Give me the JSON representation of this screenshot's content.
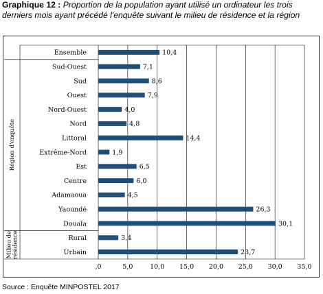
{
  "heading": {
    "lead": "Graphique 12 :",
    "text": "Proportion de la population ayant utilisé un ordinateur les trois derniers mois ayant précédé l'enquête suivant le milieu de résidence et la région"
  },
  "source": "Source : Enquête MINPOSTEL 2017",
  "colors": {
    "bar": "#1f4e79",
    "grid": "#000000",
    "frame": "#000000"
  },
  "chart_data": {
    "type": "bar",
    "orientation": "horizontal",
    "categories": [
      "Ensemble",
      "Sud-Ouest",
      "Sud",
      "Ouest",
      "Nord-Ouest",
      "Nord",
      "Littoral",
      "Extrême-Nord",
      "Est",
      "Centre",
      "Adamaoua",
      "Yaoundé",
      "Douala",
      "Rural",
      "Urbain"
    ],
    "values": [
      10.4,
      7.1,
      8.6,
      7.9,
      4.0,
      4.8,
      14.4,
      1.9,
      6.5,
      6.0,
      4.5,
      26.3,
      30.1,
      3.4,
      23.7
    ],
    "value_labels": [
      "10,4",
      "7,1",
      "8,6",
      "7,9",
      "4,0",
      "4,8",
      "14,4",
      "1,9",
      "6,5",
      "6,0",
      "4,5",
      "26,3",
      "30,1",
      "3,4",
      "23,7"
    ],
    "xlim": [
      0,
      35
    ],
    "ticks": [
      0,
      5,
      10,
      15,
      20,
      25,
      30,
      35
    ],
    "tick_labels": [
      ",0",
      "5,0",
      "10,0",
      "15,0",
      "20,0",
      "25,0",
      "30,0",
      "35,0"
    ],
    "grid": true,
    "groups": [
      {
        "label": "Région d'enquête",
        "lines": [
          "Région d'enquête"
        ],
        "first": 1,
        "last": 12
      },
      {
        "label": "Milieu de résidence",
        "lines": [
          "Milieu de",
          "résidence"
        ],
        "first": 13,
        "last": 14
      }
    ]
  }
}
